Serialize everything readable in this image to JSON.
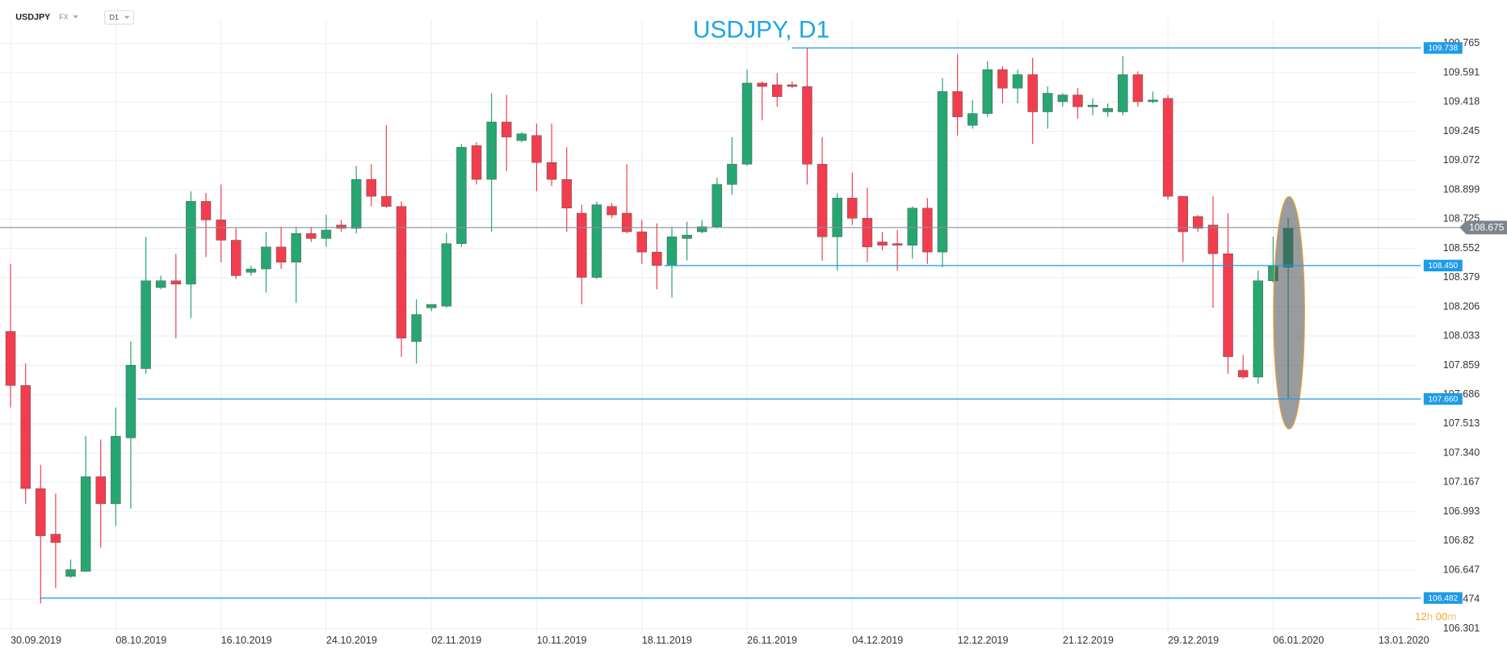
{
  "header": {
    "symbol": "USDJPY",
    "market": "FX",
    "timeframe": "D1"
  },
  "chart_data": {
    "type": "candlestick",
    "title": "USDJPY, D1",
    "categories": [
      "30.09.2019",
      null,
      null,
      null,
      null,
      null,
      null,
      "08.10.2019",
      null,
      null,
      null,
      null,
      null,
      null,
      "16.10.2019",
      null,
      null,
      null,
      null,
      null,
      null,
      "24.10.2019",
      null,
      null,
      null,
      null,
      null,
      null,
      "02.11.2019",
      null,
      null,
      null,
      null,
      null,
      null,
      "10.11.2019",
      null,
      null,
      null,
      null,
      null,
      null,
      "18.11.2019",
      null,
      null,
      null,
      null,
      null,
      null,
      "26.11.2019",
      null,
      null,
      null,
      null,
      null,
      null,
      "04.12.2019",
      null,
      null,
      null,
      null,
      null,
      null,
      "12.12.2019",
      null,
      null,
      null,
      null,
      null,
      null,
      "21.12.2019",
      null,
      null,
      null,
      null,
      null,
      null,
      "29.12.2019",
      null,
      null,
      null,
      null,
      null,
      null,
      "06.01.2020",
      null,
      null,
      null,
      null,
      null,
      null,
      "13.01.2020"
    ],
    "open": [
      108.06,
      107.74,
      107.13,
      106.86,
      106.61,
      106.64,
      107.2,
      107.04,
      107.43,
      107.84,
      108.32,
      108.36,
      108.34,
      108.83,
      108.72,
      108.6,
      108.41,
      108.43,
      108.56,
      108.47,
      108.64,
      108.61,
      108.69,
      108.67,
      108.96,
      108.86,
      108.8,
      108.0,
      108.2,
      108.21,
      108.58,
      109.16,
      108.96,
      109.3,
      109.19,
      109.22,
      109.06,
      108.96,
      108.76,
      108.38,
      108.8,
      108.76,
      108.65,
      108.53,
      108.45,
      108.61,
      108.65,
      108.68,
      108.93,
      109.05,
      109.53,
      109.52,
      109.52,
      109.51,
      109.05,
      108.62,
      108.85,
      108.73,
      108.59,
      108.58,
      108.57,
      108.79,
      108.53,
      109.48,
      109.28,
      109.35,
      109.61,
      109.5,
      109.58,
      109.36,
      109.42,
      109.46,
      109.39,
      109.36,
      109.36,
      109.58,
      109.42,
      109.44,
      108.86,
      108.74,
      108.69,
      108.52,
      107.83,
      107.79,
      108.36,
      108.44,
      null,
      null,
      null,
      null,
      null,
      null
    ],
    "high": [
      108.46,
      107.87,
      107.27,
      107.1,
      106.71,
      107.44,
      107.42,
      107.61,
      108.0,
      108.62,
      108.39,
      108.52,
      108.89,
      108.88,
      108.93,
      108.67,
      108.45,
      108.65,
      108.68,
      108.68,
      108.68,
      108.75,
      108.72,
      109.04,
      109.05,
      109.28,
      108.83,
      108.25,
      108.22,
      108.64,
      109.17,
      109.18,
      109.47,
      109.46,
      109.24,
      109.29,
      109.29,
      109.15,
      108.81,
      108.83,
      108.82,
      109.05,
      108.72,
      108.7,
      108.68,
      108.71,
      108.72,
      108.97,
      109.21,
      109.61,
      109.54,
      109.59,
      109.54,
      109.738,
      109.21,
      108.88,
      109.0,
      108.91,
      108.65,
      108.66,
      108.8,
      108.85,
      109.56,
      109.7,
      109.43,
      109.66,
      109.63,
      109.61,
      109.68,
      109.51,
      109.47,
      109.5,
      109.44,
      109.41,
      109.69,
      109.6,
      109.48,
      109.46,
      108.86,
      108.75,
      108.86,
      108.76,
      107.92,
      108.42,
      108.62,
      108.73,
      null,
      null,
      null,
      null,
      null,
      null
    ],
    "low": [
      107.61,
      107.04,
      106.45,
      106.54,
      106.6,
      106.64,
      106.78,
      106.91,
      107.01,
      107.81,
      108.31,
      108.02,
      108.14,
      108.5,
      108.47,
      108.37,
      108.39,
      108.29,
      108.43,
      108.23,
      108.59,
      108.56,
      108.65,
      108.64,
      108.8,
      108.79,
      107.91,
      107.87,
      108.18,
      108.2,
      108.56,
      108.93,
      108.65,
      109.01,
      109.18,
      108.89,
      108.92,
      108.65,
      108.22,
      108.37,
      108.73,
      108.64,
      108.46,
      108.31,
      108.26,
      108.48,
      108.64,
      108.67,
      108.87,
      109.04,
      109.31,
      109.39,
      109.5,
      108.93,
      108.48,
      108.42,
      108.69,
      108.47,
      108.54,
      108.42,
      108.49,
      108.46,
      108.44,
      109.22,
      109.26,
      109.33,
      109.41,
      109.41,
      109.17,
      109.26,
      109.39,
      109.32,
      109.34,
      109.33,
      109.34,
      109.39,
      109.41,
      108.84,
      108.47,
      108.65,
      108.2,
      107.81,
      107.78,
      107.75,
      108.35,
      107.66,
      null,
      null,
      null,
      null,
      null,
      null
    ],
    "close": [
      107.74,
      107.13,
      106.85,
      106.81,
      106.65,
      107.2,
      107.04,
      107.44,
      107.86,
      108.36,
      108.36,
      108.34,
      108.83,
      108.72,
      108.6,
      108.39,
      108.43,
      108.56,
      108.47,
      108.64,
      108.61,
      108.66,
      108.67,
      108.96,
      108.86,
      108.8,
      108.02,
      108.16,
      108.22,
      108.58,
      109.15,
      108.96,
      109.3,
      109.21,
      109.23,
      109.06,
      108.96,
      108.79,
      108.38,
      108.81,
      108.75,
      108.65,
      108.53,
      108.45,
      108.62,
      108.63,
      108.68,
      108.93,
      109.05,
      109.53,
      109.51,
      109.45,
      109.51,
      109.05,
      108.62,
      108.85,
      108.73,
      108.56,
      108.57,
      108.57,
      108.79,
      108.53,
      109.48,
      109.33,
      109.35,
      109.61,
      109.5,
      109.58,
      109.36,
      109.47,
      109.46,
      109.39,
      109.4,
      109.38,
      109.58,
      109.42,
      109.43,
      108.86,
      108.65,
      108.67,
      108.52,
      107.91,
      107.79,
      108.36,
      108.45,
      108.675,
      null,
      null,
      null,
      null,
      null,
      null
    ],
    "up_color": "#26a671",
    "down_color": "#f23d4f",
    "xlim": [
      -0.7,
      93.5
    ],
    "ylim": [
      106.27,
      109.85
    ],
    "yticks": [
      109.765,
      109.591,
      109.418,
      109.245,
      109.072,
      108.899,
      108.725,
      108.552,
      108.379,
      108.206,
      108.033,
      107.859,
      107.686,
      107.513,
      {
        "value": 107.34,
        "label": "107.340"
      },
      107.167,
      106.993,
      106.82,
      106.647,
      106.474,
      106.301
    ],
    "grid": true,
    "levels": [
      109.738,
      {
        "value": 108.45,
        "label": "108.450"
      },
      {
        "value": 107.66,
        "label": "107.660"
      },
      106.482
    ],
    "level_color": "#1e9be8",
    "last_price": 108.675,
    "timer": {
      "hours": "12",
      "hours_unit": "h",
      "minutes": "00",
      "minutes_unit": "m"
    }
  }
}
